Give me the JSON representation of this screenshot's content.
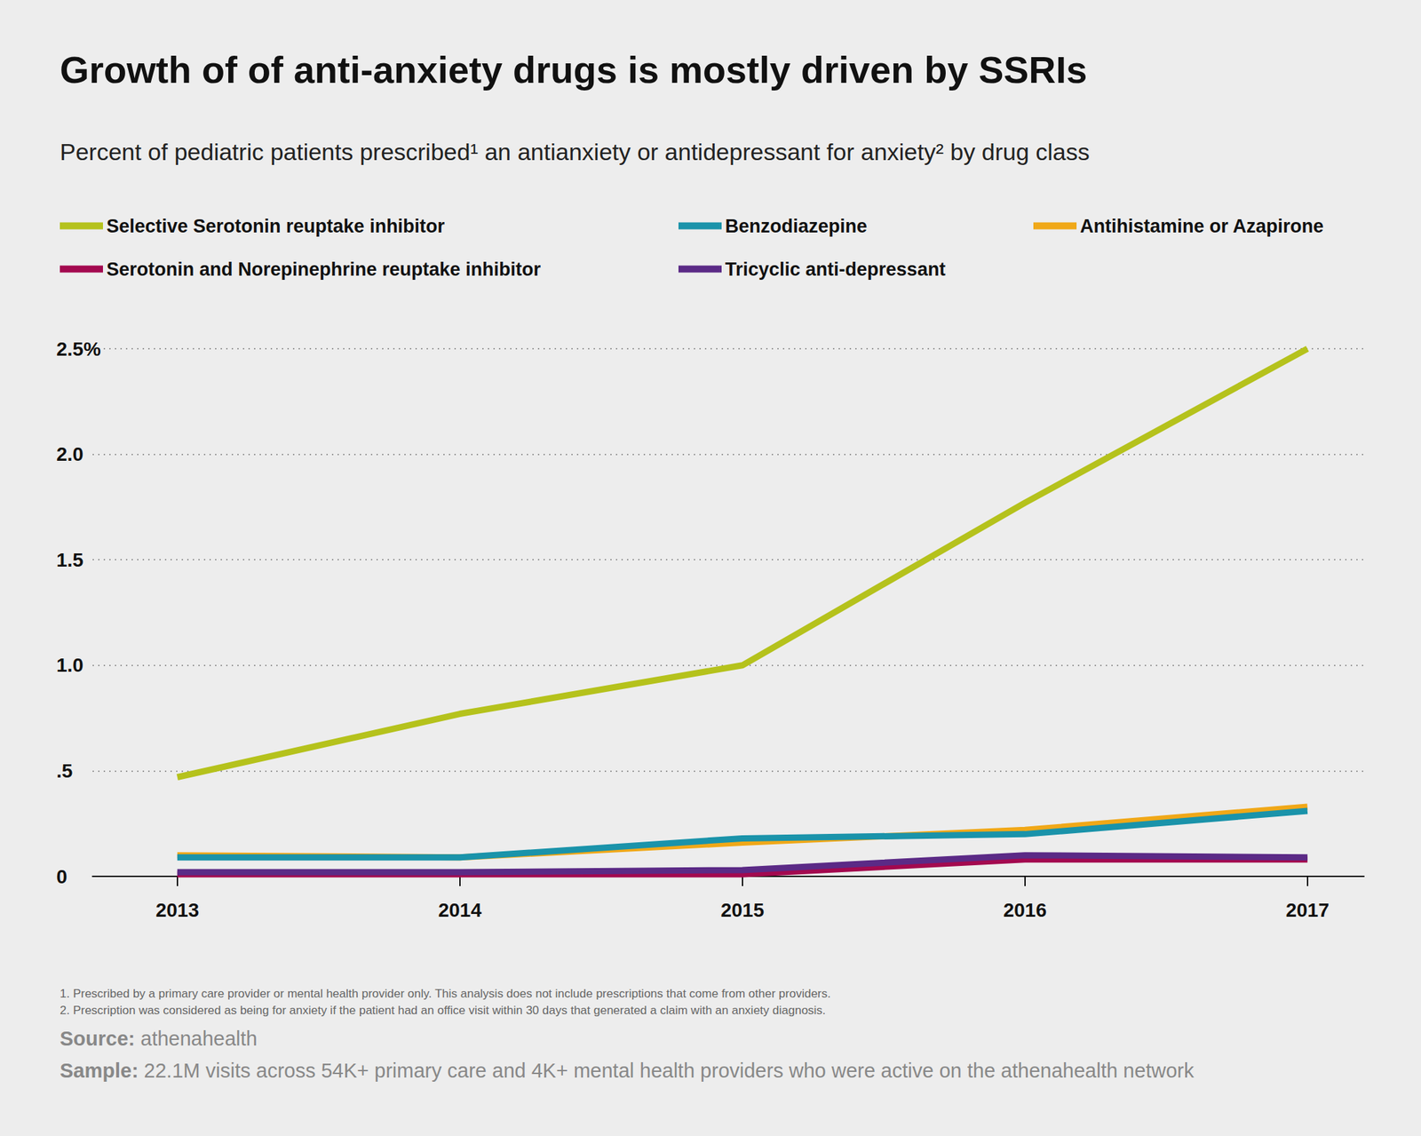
{
  "chart_data": {
    "type": "line",
    "title": "Growth of of anti-anxiety drugs is mostly driven by SSRIs",
    "subtitle": "Percent of pediatric patients prescribed¹ an antianxiety or antidepressant for anxiety² by drug class",
    "x": [
      2013,
      2014,
      2015,
      2016,
      2017
    ],
    "xlim": [
      2012.7,
      2017.2
    ],
    "xticks": [
      2013,
      2014,
      2015,
      2016,
      2017
    ],
    "ylim": [
      0,
      2.5
    ],
    "yticks": [
      0,
      {
        "value": 0.5,
        "label": ".5"
      },
      {
        "value": 1,
        "label": "1.0"
      },
      1.5,
      {
        "value": 2,
        "label": "2.0"
      },
      {
        "value": 2.5,
        "label": "2.5%"
      }
    ],
    "grid": true,
    "legend": "top",
    "marker": "none",
    "line_style": "solid",
    "series": [
      {
        "name": "Selective Serotonin reuptake inhibitor",
        "color": "#b5c21c",
        "values": [
          0.47,
          0.77,
          1.0,
          1.77,
          2.5
        ]
      },
      {
        "name": "Antihistamine or Azapirone",
        "color": "#f0a818",
        "values": [
          0.1,
          0.09,
          0.16,
          0.22,
          0.33
        ]
      },
      {
        "name": "Benzodiazepine",
        "color": "#1a93aa",
        "values": [
          0.09,
          0.09,
          0.18,
          0.2,
          0.31
        ]
      },
      {
        "name": "Serotonin and Norepinephrine reuptake inhibitor",
        "color": "#a3094f",
        "values": [
          0.01,
          0.01,
          0.01,
          0.08,
          0.08
        ]
      },
      {
        "name": "Tricyclic anti-depressant",
        "color": "#5b2a86",
        "values": [
          0.02,
          0.02,
          0.03,
          0.1,
          0.09
        ]
      }
    ],
    "footnotes": [
      "1. Prescribed by a primary care provider or mental health provider only. This analysis does not include prescriptions that come from other providers.",
      "2. Prescription was considered as being for anxiety if the patient had an office visit within 30 days that generated a claim with an anxiety diagnosis."
    ],
    "source": {
      "label": "Source:",
      "text": "athenahealth"
    },
    "sample": {
      "label": "Sample:",
      "text": "22.1M visits across 54K+ primary care and 4K+ mental health providers who were active on the athenahealth network"
    }
  }
}
